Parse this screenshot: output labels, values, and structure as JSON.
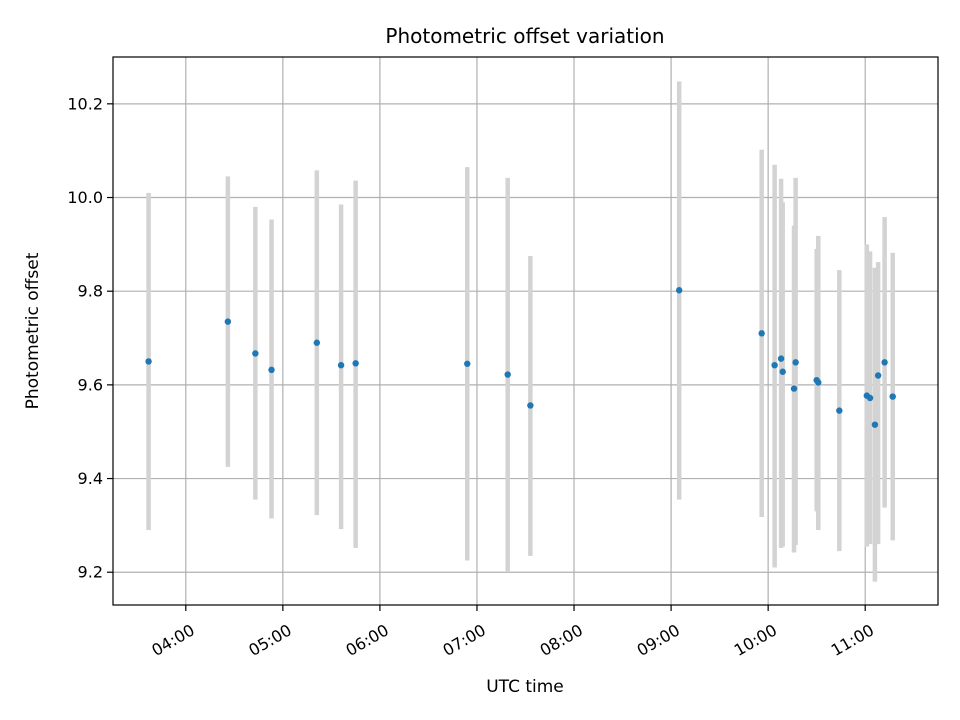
{
  "chart_data": {
    "type": "scatter",
    "title": "Photometric offset variation",
    "xlabel": "UTC time",
    "ylabel": "Photometric offset",
    "xlim": [
      "03:15",
      "11:45"
    ],
    "ylim": [
      9.13,
      10.3
    ],
    "grid": true,
    "x_ticks": [
      "04:00",
      "05:00",
      "06:00",
      "07:00",
      "08:00",
      "09:00",
      "10:00",
      "11:00"
    ],
    "y_ticks": [
      "9.2",
      "9.4",
      "9.6",
      "9.8",
      "10.0",
      "10.2"
    ],
    "colors": {
      "point": "#1f77b4",
      "errorbar": "#d3d3d3",
      "grid": "#b0b0b0"
    },
    "points": [
      {
        "x": "03:37",
        "y": 9.65,
        "ylow": 9.29,
        "yhigh": 10.01
      },
      {
        "x": "04:26",
        "y": 9.735,
        "ylow": 9.425,
        "yhigh": 10.045
      },
      {
        "x": "04:43",
        "y": 9.667,
        "ylow": 9.355,
        "yhigh": 9.98
      },
      {
        "x": "04:53",
        "y": 9.632,
        "ylow": 9.315,
        "yhigh": 9.953
      },
      {
        "x": "05:21",
        "y": 9.69,
        "ylow": 9.322,
        "yhigh": 10.058
      },
      {
        "x": "05:36",
        "y": 9.642,
        "ylow": 9.292,
        "yhigh": 9.985
      },
      {
        "x": "05:45",
        "y": 9.646,
        "ylow": 9.252,
        "yhigh": 10.036
      },
      {
        "x": "06:54",
        "y": 9.645,
        "ylow": 9.225,
        "yhigh": 10.065
      },
      {
        "x": "07:19",
        "y": 9.622,
        "ylow": 9.202,
        "yhigh": 10.042
      },
      {
        "x": "07:33",
        "y": 9.556,
        "ylow": 9.235,
        "yhigh": 9.875
      },
      {
        "x": "09:05",
        "y": 9.802,
        "ylow": 9.355,
        "yhigh": 10.248
      },
      {
        "x": "09:56",
        "y": 9.71,
        "ylow": 9.318,
        "yhigh": 10.102
      },
      {
        "x": "10:04",
        "y": 9.642,
        "ylow": 9.21,
        "yhigh": 10.07
      },
      {
        "x": "10:08",
        "y": 9.656,
        "ylow": 9.252,
        "yhigh": 10.04
      },
      {
        "x": "10:09",
        "y": 9.628,
        "ylow": 9.255,
        "yhigh": 9.99
      },
      {
        "x": "10:16",
        "y": 9.592,
        "ylow": 9.242,
        "yhigh": 9.94
      },
      {
        "x": "10:17",
        "y": 9.648,
        "ylow": 9.258,
        "yhigh": 10.042
      },
      {
        "x": "10:30",
        "y": 9.61,
        "ylow": 9.33,
        "yhigh": 9.89
      },
      {
        "x": "10:31",
        "y": 9.605,
        "ylow": 9.29,
        "yhigh": 9.918
      },
      {
        "x": "10:44",
        "y": 9.545,
        "ylow": 9.245,
        "yhigh": 9.845
      },
      {
        "x": "11:01",
        "y": 9.577,
        "ylow": 9.255,
        "yhigh": 9.9
      },
      {
        "x": "11:03",
        "y": 9.572,
        "ylow": 9.26,
        "yhigh": 9.885
      },
      {
        "x": "11:06",
        "y": 9.515,
        "ylow": 9.18,
        "yhigh": 9.85
      },
      {
        "x": "11:08",
        "y": 9.62,
        "ylow": 9.26,
        "yhigh": 9.862
      },
      {
        "x": "11:12",
        "y": 9.648,
        "ylow": 9.338,
        "yhigh": 9.958
      },
      {
        "x": "11:17",
        "y": 9.575,
        "ylow": 9.268,
        "yhigh": 9.882
      }
    ]
  }
}
